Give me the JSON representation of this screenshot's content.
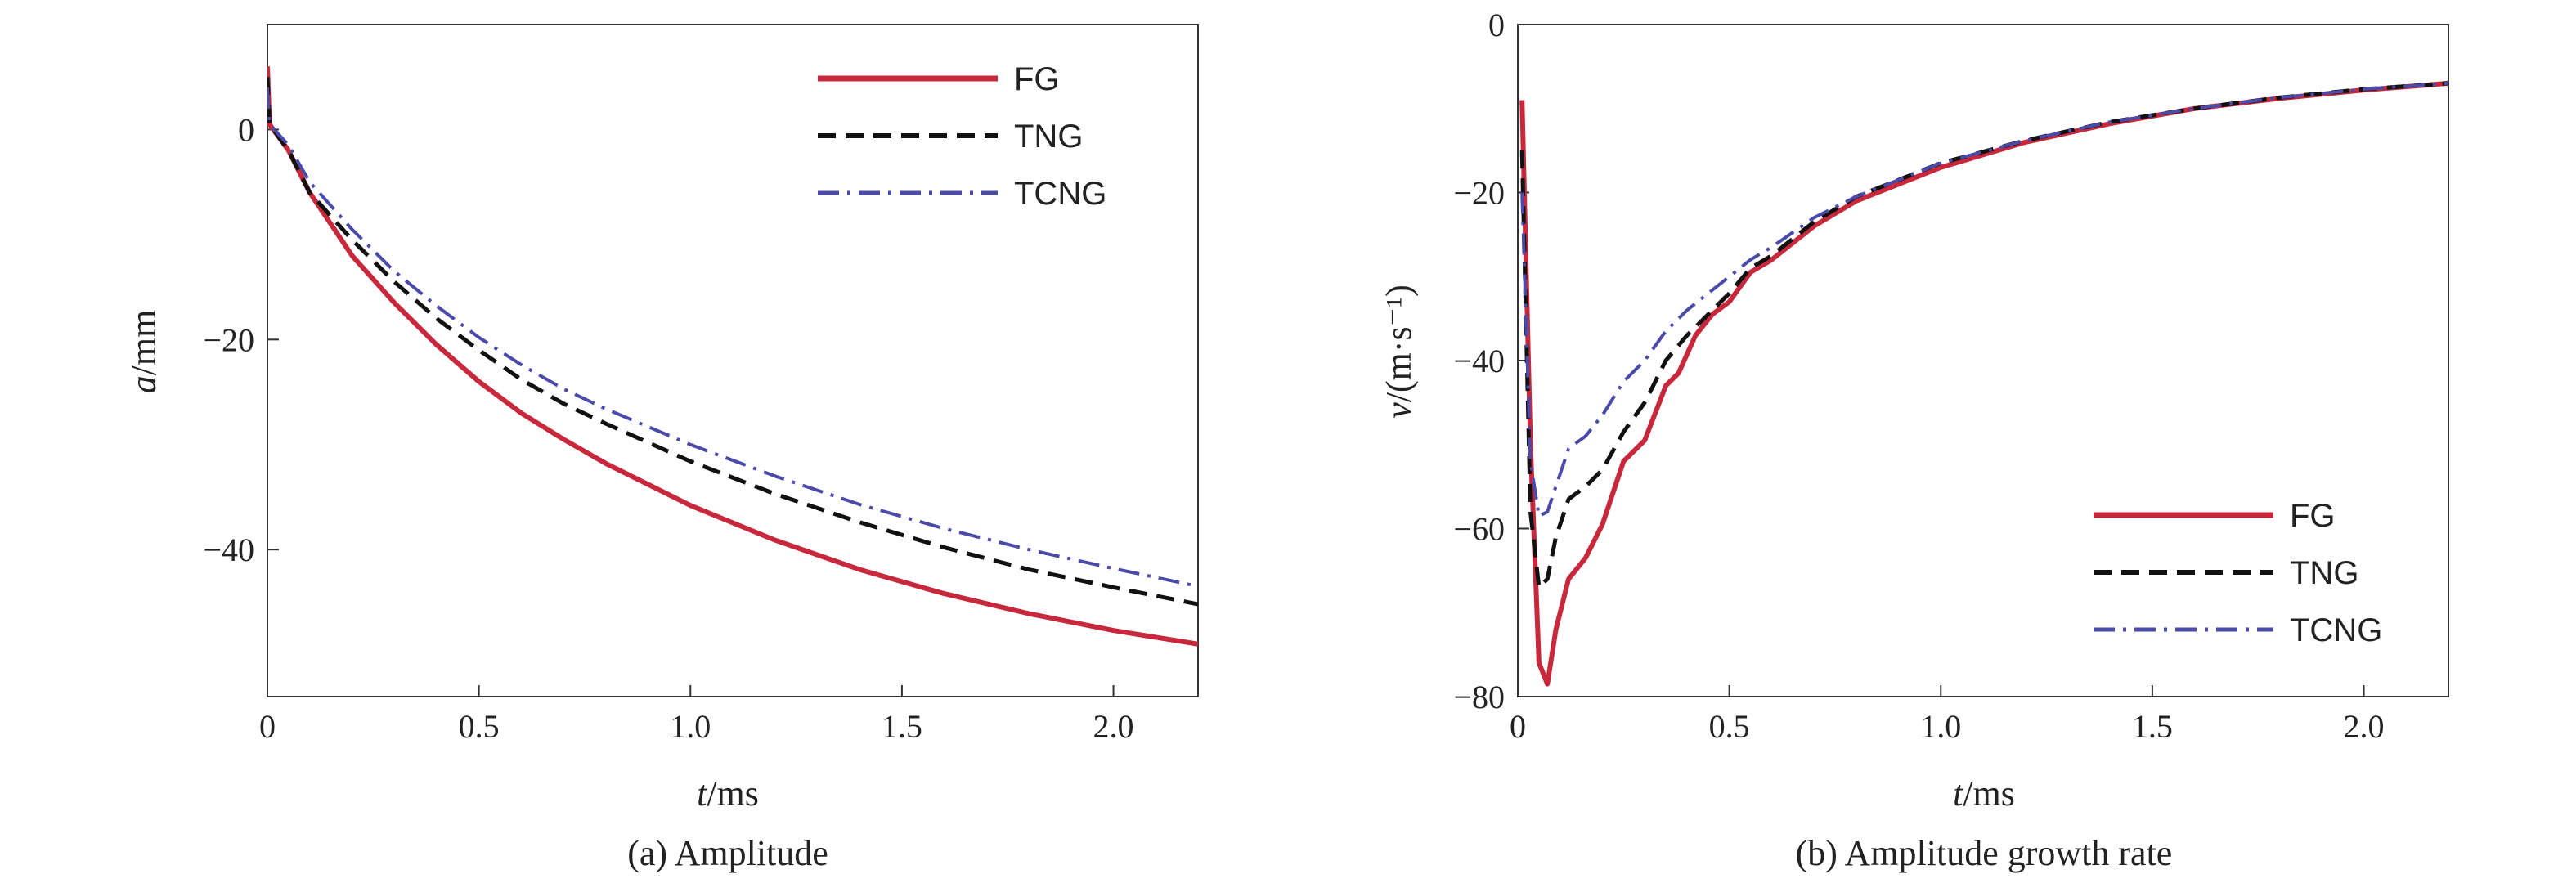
{
  "colors": {
    "FG": "#c8283c",
    "TNG": "#111111",
    "TCNG": "#4a4aa8",
    "axis": "#333333"
  },
  "chart_data": [
    {
      "type": "line",
      "caption": "(a) Amplitude",
      "xlabel_italic": "t",
      "xlabel_unit": "/ms",
      "ylabel_italic": "a",
      "ylabel_unit": "/mm",
      "xlim": [
        0,
        2.2
      ],
      "ylim": [
        -54,
        10
      ],
      "xticks": [
        0,
        0.5,
        1.0,
        1.5,
        2.0
      ],
      "xtick_labels": [
        "0",
        "0.5",
        "1.0",
        "1.5",
        "2.0"
      ],
      "yticks": [
        0,
        -20,
        -40
      ],
      "ytick_labels": [
        "0",
        "−20",
        "−40"
      ],
      "legend_position": "top-right",
      "series": [
        {
          "name": "FG",
          "style": "solid",
          "x": [
            0,
            0.005,
            0.05,
            0.1,
            0.2,
            0.3,
            0.4,
            0.5,
            0.6,
            0.7,
            0.8,
            1.0,
            1.2,
            1.4,
            1.6,
            1.8,
            2.0,
            2.2
          ],
          "y": [
            6,
            0.5,
            -2,
            -6,
            -12,
            -16.5,
            -20.5,
            -24,
            -27,
            -29.5,
            -31.8,
            -35.8,
            -39.1,
            -41.9,
            -44.2,
            -46.1,
            -47.7,
            -49
          ]
        },
        {
          "name": "TNG",
          "style": "dashed",
          "x": [
            0,
            0.005,
            0.05,
            0.1,
            0.2,
            0.3,
            0.4,
            0.5,
            0.6,
            0.7,
            0.8,
            1.0,
            1.2,
            1.4,
            1.6,
            1.8,
            2.0,
            2.2
          ],
          "y": [
            5,
            0.5,
            -2,
            -6,
            -10.5,
            -14.5,
            -18,
            -21,
            -23.8,
            -26.1,
            -28,
            -31.6,
            -34.7,
            -37.4,
            -39.8,
            -41.9,
            -43.6,
            -45.2
          ]
        },
        {
          "name": "TCNG",
          "style": "dashdot",
          "x": [
            0,
            0.005,
            0.05,
            0.1,
            0.2,
            0.3,
            0.4,
            0.5,
            0.6,
            0.7,
            0.8,
            1.0,
            1.2,
            1.4,
            1.6,
            1.8,
            2.0,
            2.2
          ],
          "y": [
            4,
            0.5,
            -1.5,
            -5,
            -9.5,
            -13.5,
            -16.8,
            -19.8,
            -22.4,
            -24.7,
            -26.6,
            -30,
            -33,
            -35.7,
            -38,
            -40,
            -41.8,
            -43.5
          ]
        }
      ]
    },
    {
      "type": "line",
      "caption": "(b) Amplitude growth rate",
      "xlabel_italic": "t",
      "xlabel_unit": "/ms",
      "ylabel_italic": "v",
      "ylabel_unit": "/(m·s⁻¹)",
      "xlim": [
        0,
        2.2
      ],
      "ylim": [
        -80,
        0
      ],
      "xticks": [
        0,
        0.5,
        1.0,
        1.5,
        2.0
      ],
      "xtick_labels": [
        "0",
        "0.5",
        "1.0",
        "1.5",
        "2.0"
      ],
      "yticks": [
        0,
        -20,
        -40,
        -60,
        -80
      ],
      "ytick_labels": [
        "0",
        "−20",
        "−40",
        "−60",
        "−80"
      ],
      "legend_position": "bottom-right",
      "series": [
        {
          "name": "FG",
          "style": "solid",
          "x": [
            0.01,
            0.03,
            0.05,
            0.07,
            0.09,
            0.12,
            0.16,
            0.2,
            0.25,
            0.3,
            0.35,
            0.38,
            0.42,
            0.46,
            0.5,
            0.55,
            0.6,
            0.7,
            0.8,
            1.0,
            1.2,
            1.4,
            1.6,
            1.8,
            2.0,
            2.2
          ],
          "y": [
            -9,
            -50,
            -76,
            -78.5,
            -72,
            -66,
            -63.5,
            -59.5,
            -52,
            -49.5,
            -43,
            -41.5,
            -37,
            -34.5,
            -33,
            -29.5,
            -28,
            -24,
            -21,
            -17,
            -14,
            -11.8,
            -10,
            -8.8,
            -7.8,
            -7
          ]
        },
        {
          "name": "TNG",
          "style": "dashed",
          "x": [
            0.01,
            0.03,
            0.05,
            0.07,
            0.09,
            0.12,
            0.16,
            0.2,
            0.25,
            0.3,
            0.35,
            0.4,
            0.45,
            0.5,
            0.55,
            0.6,
            0.7,
            0.8,
            1.0,
            1.2,
            1.4,
            1.6,
            1.8,
            2.0,
            2.2
          ],
          "y": [
            -15,
            -58,
            -67,
            -66,
            -61,
            -56.5,
            -55,
            -53,
            -48.5,
            -45,
            -40,
            -37,
            -34.5,
            -32,
            -29,
            -27.5,
            -23.5,
            -20.5,
            -16.5,
            -13.8,
            -11.6,
            -10,
            -8.7,
            -7.7,
            -7
          ]
        },
        {
          "name": "TCNG",
          "style": "dashdot",
          "x": [
            0.01,
            0.03,
            0.05,
            0.07,
            0.09,
            0.12,
            0.16,
            0.2,
            0.25,
            0.3,
            0.35,
            0.4,
            0.45,
            0.5,
            0.55,
            0.6,
            0.7,
            0.8,
            1.0,
            1.2,
            1.4,
            1.6,
            1.8,
            2.0,
            2.2
          ],
          "y": [
            -20,
            -52,
            -58.5,
            -58,
            -55,
            -50.5,
            -49,
            -46.5,
            -42.5,
            -40,
            -36.5,
            -34,
            -32,
            -30,
            -28,
            -26.5,
            -23,
            -20.5,
            -16.5,
            -13.8,
            -11.6,
            -10,
            -8.7,
            -7.7,
            -7
          ]
        }
      ]
    }
  ]
}
